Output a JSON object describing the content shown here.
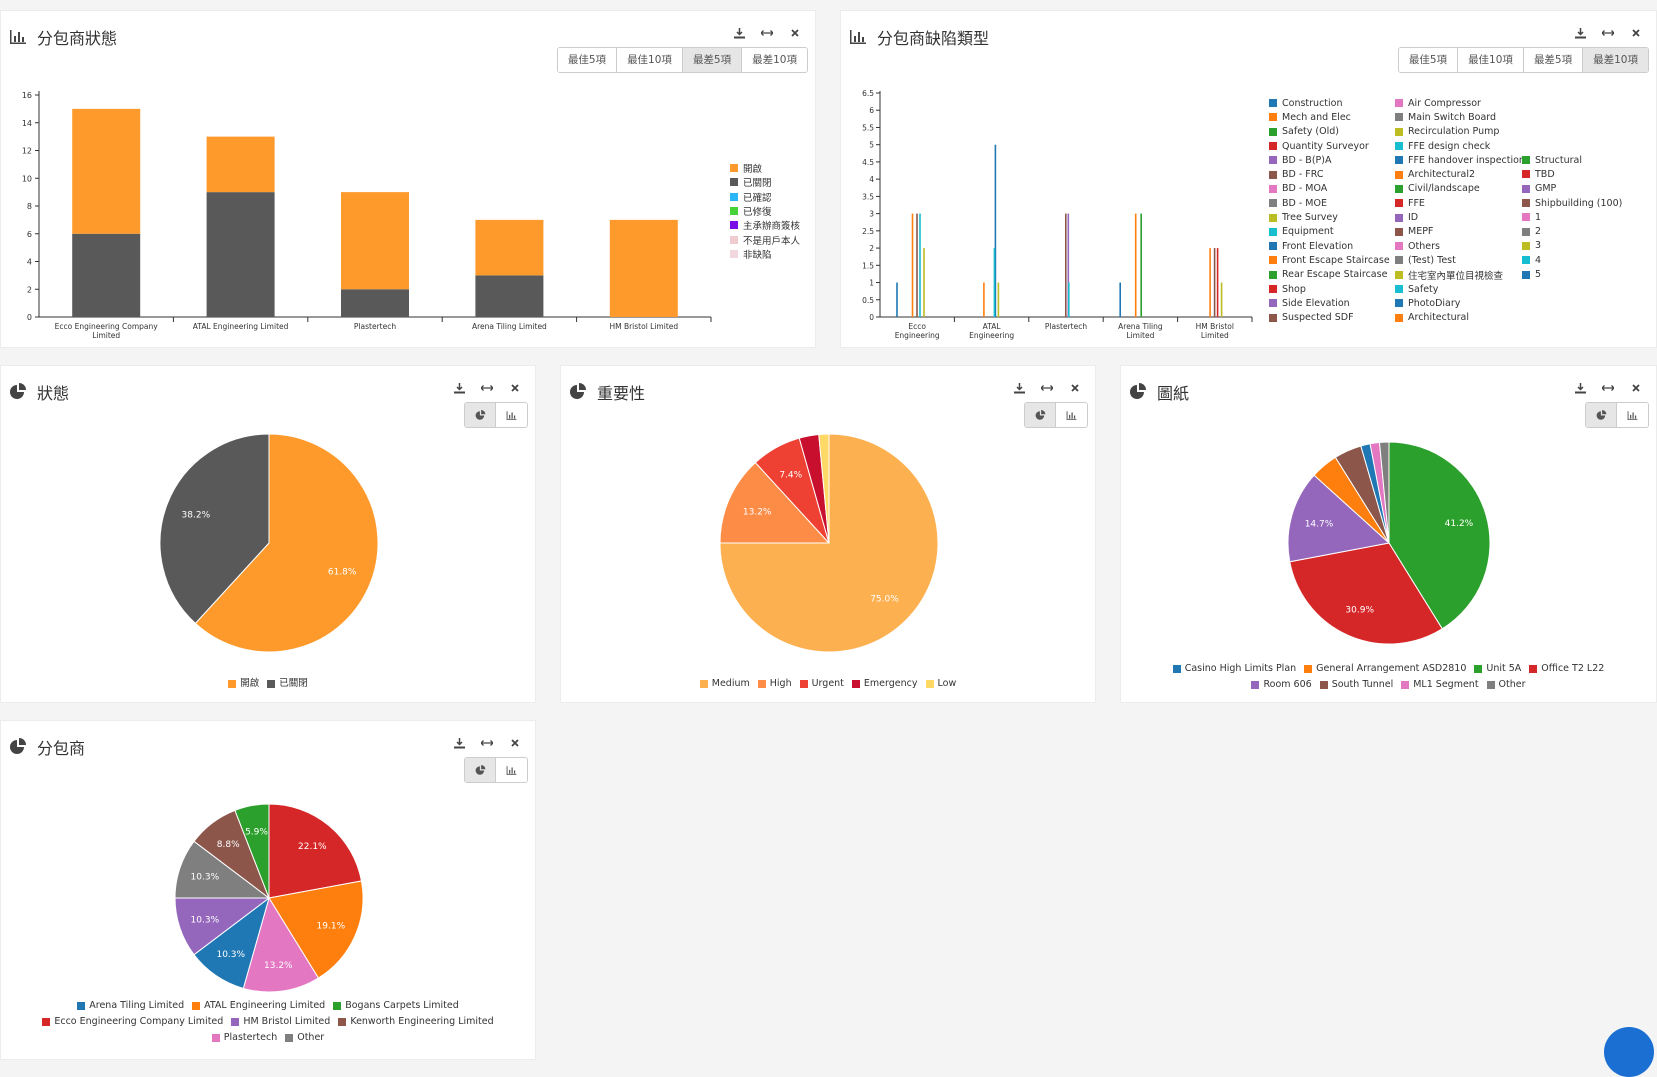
{
  "colors": {
    "open": "#fe9a2b",
    "closed": "#595959"
  },
  "panel1": {
    "title": "分包商狀態",
    "buttons": [
      "最佳5項",
      "最佳10項",
      "最差5項",
      "最差10項"
    ],
    "active_button": 2,
    "legend": [
      {
        "label": "開啟",
        "color": "#fe9a2b"
      },
      {
        "label": "已關閉",
        "color": "#595959"
      },
      {
        "label": "已確認",
        "color": "#29b6f6"
      },
      {
        "label": "已修復",
        "color": "#48d23a"
      },
      {
        "label": "主承辦商簽核",
        "color": "#7a0fe8"
      },
      {
        "label": "不是用戶本人",
        "color": "#f2cbd0"
      },
      {
        "label": "非缺陷",
        "color": "#f0d6dd"
      }
    ]
  },
  "panel2": {
    "title": "分包商缺陷類型",
    "buttons": [
      "最佳5項",
      "最佳10項",
      "最差5項",
      "最差10項"
    ],
    "active_button": 3,
    "legend_col1": [
      {
        "label": "Construction",
        "color": "#1f77b4"
      },
      {
        "label": "Mech and Elec",
        "color": "#ff7f0e"
      },
      {
        "label": "Safety (Old)",
        "color": "#2ca02c"
      },
      {
        "label": "Quantity Surveyor",
        "color": "#d62728"
      },
      {
        "label": "BD - B(P)A",
        "color": "#9467bd"
      },
      {
        "label": "BD - FRC",
        "color": "#8c564b"
      },
      {
        "label": "BD - MOA",
        "color": "#e377c2"
      },
      {
        "label": "BD - MOE",
        "color": "#7f7f7f"
      },
      {
        "label": "Tree Survey",
        "color": "#bcbd22"
      },
      {
        "label": "Equipment",
        "color": "#17becf"
      },
      {
        "label": "Front Elevation",
        "color": "#1f77b4"
      },
      {
        "label": "Front Escape Staircase",
        "color": "#ff7f0e"
      },
      {
        "label": "Rear Escape Staircase",
        "color": "#2ca02c"
      },
      {
        "label": "Shop",
        "color": "#d62728"
      },
      {
        "label": "Side Elevation",
        "color": "#9467bd"
      },
      {
        "label": "Suspected SDF",
        "color": "#8c564b"
      }
    ],
    "legend_col2": [
      {
        "label": "Air Compressor",
        "color": "#e377c2"
      },
      {
        "label": "Main Switch Board",
        "color": "#7f7f7f"
      },
      {
        "label": "Recirculation Pump",
        "color": "#bcbd22"
      },
      {
        "label": "FFE design check",
        "color": "#17becf"
      },
      {
        "label": "FFE handover inspection",
        "color": "#1f77b4"
      },
      {
        "label": "Architectural2",
        "color": "#ff7f0e"
      },
      {
        "label": "Civil/landscape",
        "color": "#2ca02c"
      },
      {
        "label": "FFE",
        "color": "#d62728"
      },
      {
        "label": "ID",
        "color": "#9467bd"
      },
      {
        "label": "MEPF",
        "color": "#8c564b"
      },
      {
        "label": "Others",
        "color": "#e377c2"
      },
      {
        "label": "(Test) Test",
        "color": "#7f7f7f"
      },
      {
        "label": "住宅室內單位目視檢查",
        "color": "#bcbd22"
      },
      {
        "label": "Safety",
        "color": "#17becf"
      },
      {
        "label": "PhotoDiary",
        "color": "#1f77b4"
      },
      {
        "label": "Architectural",
        "color": "#ff7f0e"
      }
    ],
    "legend_col3": [
      {
        "label": "Structural",
        "color": "#2ca02c"
      },
      {
        "label": "TBD",
        "color": "#d62728"
      },
      {
        "label": "GMP",
        "color": "#9467bd"
      },
      {
        "label": "Shipbuilding (100)",
        "color": "#8c564b"
      },
      {
        "label": "1",
        "color": "#e377c2"
      },
      {
        "label": "2",
        "color": "#7f7f7f"
      },
      {
        "label": "3",
        "color": "#bcbd22"
      },
      {
        "label": "4",
        "color": "#17becf"
      },
      {
        "label": "5",
        "color": "#1f77b4"
      }
    ]
  },
  "panel3": {
    "title": "狀態"
  },
  "panel4": {
    "title": "重要性"
  },
  "panel5": {
    "title": "圖紙"
  },
  "panel6": {
    "title": "分包商"
  },
  "chart_data": [
    {
      "type": "bar",
      "title": "分包商狀態",
      "stacked": true,
      "categories": [
        "Ecco Engineering Company Limited",
        "ATAL Engineering Limited",
        "Plastertech",
        "Arena Tiling Limited",
        "HM Bristol Limited"
      ],
      "series": [
        {
          "name": "已關閉",
          "color": "#595959",
          "values": [
            6,
            9,
            2,
            3,
            0
          ]
        },
        {
          "name": "開啟",
          "color": "#fe9a2b",
          "values": [
            9,
            4,
            7,
            4,
            7
          ]
        }
      ],
      "ylim": [
        0,
        16
      ],
      "yticks": [
        0,
        2,
        4,
        6,
        8,
        10,
        12,
        14,
        16
      ],
      "legend": "right"
    },
    {
      "type": "bar",
      "title": "分包商缺陷類型",
      "categories": [
        "Ecco Engineering",
        "ATAL Engineering",
        "Plastertech",
        "Arena Tiling Limited",
        "HM Bristol Limited"
      ],
      "ylim": [
        0,
        6.5
      ],
      "yticks": [
        "0",
        "0.5",
        "1",
        "1.5",
        "2",
        "2.5",
        "3",
        "3.5",
        "4",
        "4.5",
        "5",
        "5.5",
        "6",
        "6.5"
      ],
      "series": [
        {
          "name": "Construction",
          "color": "#1f77b4",
          "values": [
            1,
            0,
            0,
            1,
            0
          ]
        },
        {
          "name": "Mech and Elec",
          "color": "#ff7f0e",
          "values": [
            0,
            1,
            0,
            0,
            0
          ]
        },
        {
          "name": "Safety (Old)",
          "color": "#2ca02c",
          "values": [
            0,
            0,
            0,
            3,
            0
          ]
        },
        {
          "name": "Quantity Surveyor",
          "color": "#d62728",
          "values": [
            0,
            0,
            0,
            0,
            2
          ]
        },
        {
          "name": "BD - B(P)A",
          "color": "#9467bd",
          "values": [
            0,
            0,
            3,
            0,
            0
          ]
        },
        {
          "name": "BD - FRC",
          "color": "#8c564b",
          "values": [
            3,
            0,
            3,
            0,
            2
          ]
        },
        {
          "name": "Front Elevation",
          "color": "#1f77b4",
          "values": [
            0,
            5,
            0,
            0,
            0
          ]
        },
        {
          "name": "Front Escape Staircase",
          "color": "#ff7f0e",
          "values": [
            3,
            0,
            0,
            3,
            2
          ]
        },
        {
          "name": "FFE design check",
          "color": "#17becf",
          "values": [
            3,
            2,
            1,
            0,
            0
          ]
        },
        {
          "name": "住宅室內單位目視檢查",
          "color": "#bcbd22",
          "values": [
            2,
            1,
            0,
            0,
            1
          ]
        }
      ],
      "legend": "right"
    },
    {
      "type": "pie",
      "title": "狀態",
      "labels": [
        "開啟",
        "已關閉"
      ],
      "values": [
        61.8,
        38.2
      ],
      "colors": [
        "#fe9a2b",
        "#595959"
      ]
    },
    {
      "type": "pie",
      "title": "重要性",
      "labels": [
        "Medium",
        "High",
        "Urgent",
        "Emergency",
        "Low"
      ],
      "values": [
        75.0,
        13.2,
        7.4,
        2.9,
        1.5
      ],
      "colors": [
        "#fdb050",
        "#fc8c46",
        "#ee4033",
        "#c8102e",
        "#ffd866"
      ],
      "display_labels": [
        "75.0%",
        "13.2%",
        "7.4%",
        "",
        ""
      ]
    },
    {
      "type": "pie",
      "title": "圖紙",
      "labels": [
        "Unit 5A",
        "Office T2 L22",
        "Room 606",
        "General Arrangement ASD2810",
        "South Tunnel",
        "Casino High Limits Plan",
        "ML1 Segment",
        "Other"
      ],
      "values": [
        41.2,
        30.9,
        14.7,
        4.4,
        4.4,
        1.5,
        1.5,
        1.5
      ],
      "colors": [
        "#2ca02c",
        "#d62728",
        "#9467bd",
        "#ff7f0e",
        "#8c564b",
        "#1f77b4",
        "#e377c2",
        "#7f7f7f"
      ],
      "display_labels": [
        "41.2%",
        "30.9%",
        "14.7%",
        "",
        "",
        "",
        "",
        ""
      ],
      "legend": [
        "Casino High Limits Plan",
        "General Arrangement ASD2810",
        "Unit 5A",
        "Office T2 L22",
        "Room 606",
        "South Tunnel",
        "ML1 Segment",
        "Other"
      ]
    },
    {
      "type": "pie",
      "title": "分包商",
      "labels": [
        "Ecco Engineering Company Limited",
        "ATAL Engineering Limited",
        "Plastertech",
        "Arena Tiling Limited",
        "HM Bristol Limited",
        "Other",
        "Kenworth Engineering Limited",
        "Bogans Carpets Limited"
      ],
      "values": [
        22.1,
        19.1,
        13.2,
        10.3,
        10.3,
        10.3,
        8.8,
        5.9
      ],
      "colors": [
        "#d62728",
        "#ff7f0e",
        "#e377c2",
        "#1f77b4",
        "#9467bd",
        "#7f7f7f",
        "#8c564b",
        "#2ca02c"
      ],
      "display_labels": [
        "22.1%",
        "19.1%",
        "13.2%",
        "10.3%",
        "10.3%",
        "10.3%",
        "8.8%",
        "5.9%"
      ],
      "legend": [
        "Arena Tiling Limited",
        "ATAL Engineering Limited",
        "Bogans Carpets Limited",
        "Ecco Engineering Company Limited",
        "HM Bristol Limited",
        "Kenworth Engineering Limited",
        "Plastertech",
        "Other"
      ]
    }
  ]
}
